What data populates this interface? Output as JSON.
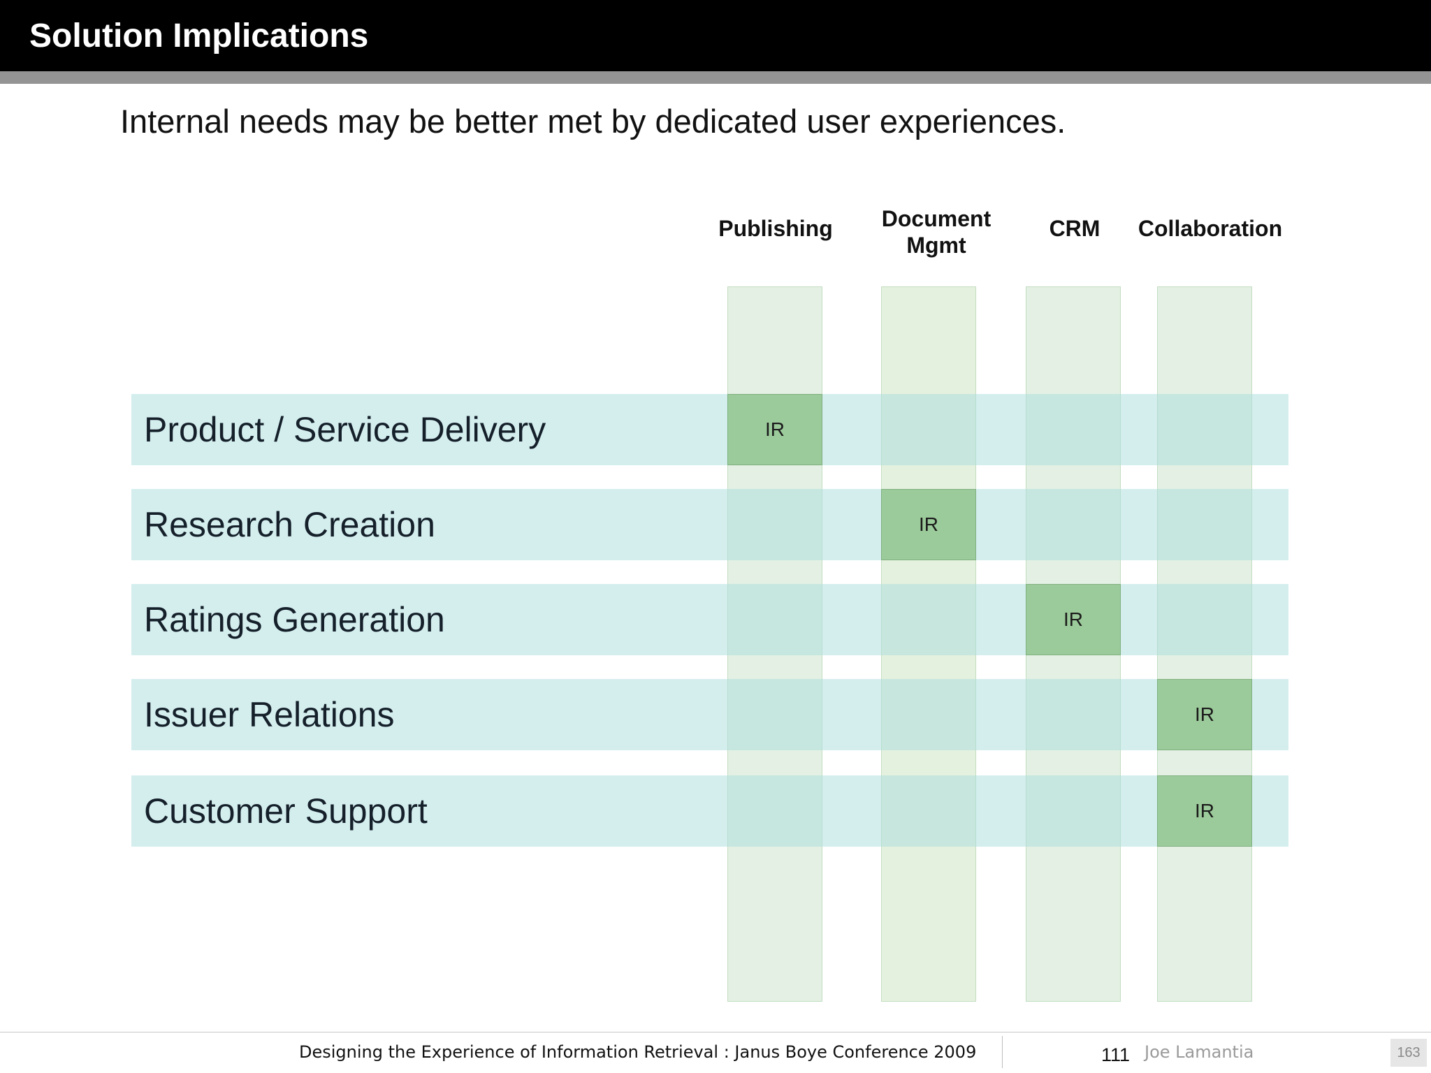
{
  "slide": {
    "title": "Solution Implications",
    "subtitle": "Internal needs may be better met by dedicated user experiences."
  },
  "matrix": {
    "columns": [
      "Publishing",
      "Document\nMgmt",
      "CRM",
      "Collaboration"
    ],
    "rows": [
      "Product / Service Delivery",
      "Research Creation",
      "Ratings Generation",
      "Issuer Relations",
      "Customer Support"
    ],
    "cell_label": "IR",
    "cells": [
      {
        "row": 0,
        "col": 0,
        "label": "IR"
      },
      {
        "row": 1,
        "col": 1,
        "label": "IR"
      },
      {
        "row": 2,
        "col": 2,
        "label": "IR"
      },
      {
        "row": 3,
        "col": 3,
        "label": "IR"
      },
      {
        "row": 4,
        "col": 3,
        "label": "IR"
      }
    ],
    "colors": {
      "row_band": "#aadede",
      "column_band": "#c8e1c8",
      "highlight_cell": "#9ccb9b"
    }
  },
  "footer": {
    "text": "Designing the Experience of Information Retrieval : Janus Boye Conference 2009",
    "slide_number": "111",
    "author": "Joe Lamantia",
    "page_badge": "163"
  }
}
